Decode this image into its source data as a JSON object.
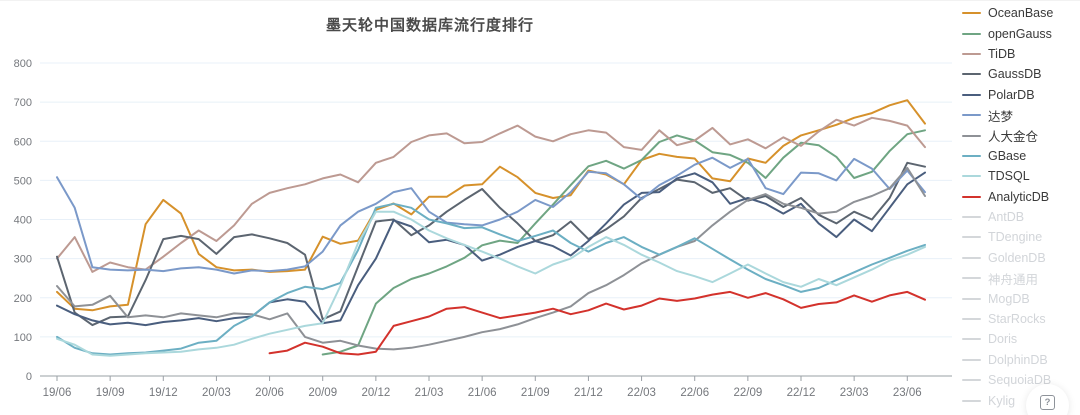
{
  "chart_data": {
    "type": "line",
    "title": "墨天轮中国数据库流行度排行",
    "xlabel": "",
    "ylabel": "",
    "ylim": [
      0,
      800
    ],
    "y_ticks": [
      0,
      100,
      200,
      300,
      400,
      500,
      600,
      700,
      800
    ],
    "grid": "horizontal",
    "legend_position": "right",
    "x_is_monthly": true,
    "months_total": 50,
    "x_tick_month_indices": [
      0,
      3,
      6,
      9,
      12,
      15,
      18,
      21,
      24,
      27,
      30,
      33,
      36,
      39,
      42,
      45,
      48
    ],
    "x_tick_labels": [
      "19/06",
      "19/09",
      "19/12",
      "20/03",
      "20/06",
      "20/09",
      "20/12",
      "21/03",
      "21/06",
      "21/09",
      "21/12",
      "22/03",
      "22/06",
      "22/09",
      "22/12",
      "23/03",
      "23/06"
    ],
    "series": [
      {
        "name": "OceanBase",
        "color": "#d6912b",
        "active": true,
        "values": [
          215,
          172,
          168,
          178,
          182,
          388,
          450,
          415,
          312,
          278,
          270,
          272,
          266,
          268,
          272,
          356,
          338,
          346,
          425,
          441,
          413,
          458,
          458,
          487,
          490,
          535,
          508,
          468,
          455,
          462,
          525,
          515,
          490,
          552,
          568,
          560,
          556,
          505,
          498,
          556,
          545,
          588,
          615,
          628,
          642,
          660,
          672,
          692,
          705,
          645
        ]
      },
      {
        "name": "openGauss",
        "color": "#6fa583",
        "active": true,
        "values": [
          null,
          null,
          null,
          null,
          null,
          null,
          null,
          null,
          null,
          null,
          null,
          null,
          null,
          null,
          null,
          55,
          62,
          78,
          185,
          225,
          248,
          262,
          280,
          302,
          334,
          346,
          340,
          390,
          438,
          488,
          536,
          550,
          530,
          552,
          598,
          615,
          602,
          572,
          565,
          545,
          506,
          558,
          596,
          590,
          560,
          506,
          522,
          575,
          618,
          628
        ]
      },
      {
        "name": "TiDB",
        "color": "#bd9a92",
        "active": true,
        "values": [
          300,
          355,
          266,
          290,
          278,
          272,
          305,
          340,
          372,
          345,
          385,
          440,
          468,
          480,
          490,
          505,
          515,
          495,
          545,
          560,
          598,
          615,
          620,
          595,
          598,
          620,
          640,
          612,
          600,
          618,
          628,
          622,
          585,
          578,
          628,
          590,
          602,
          634,
          592,
          605,
          582,
          610,
          588,
          625,
          655,
          640,
          660,
          652,
          640,
          585
        ]
      },
      {
        "name": "GaussDB",
        "color": "#5c6570",
        "active": true,
        "values": [
          305,
          162,
          130,
          150,
          152,
          245,
          350,
          358,
          350,
          312,
          355,
          362,
          352,
          340,
          310,
          145,
          165,
          280,
          395,
          400,
          360,
          385,
          420,
          450,
          478,
          430,
          390,
          345,
          360,
          395,
          350,
          375,
          408,
          455,
          478,
          502,
          495,
          468,
          480,
          448,
          460,
          432,
          455,
          412,
          390,
          420,
          400,
          455,
          545,
          535
        ]
      },
      {
        "name": "PolarDB",
        "color": "#4a5e7e",
        "active": true,
        "values": [
          180,
          158,
          142,
          132,
          136,
          130,
          138,
          142,
          148,
          140,
          148,
          152,
          188,
          196,
          190,
          135,
          142,
          232,
          300,
          398,
          382,
          342,
          348,
          335,
          295,
          310,
          330,
          345,
          332,
          308,
          345,
          390,
          438,
          468,
          470,
          505,
          518,
          495,
          440,
          455,
          440,
          415,
          440,
          390,
          355,
          400,
          370,
          430,
          490,
          520
        ]
      },
      {
        "name": "达梦",
        "color": "#7b99c9",
        "active": true,
        "values": [
          508,
          430,
          278,
          272,
          270,
          272,
          268,
          275,
          278,
          272,
          262,
          270,
          268,
          272,
          280,
          318,
          385,
          420,
          440,
          470,
          480,
          420,
          392,
          388,
          385,
          400,
          420,
          450,
          432,
          470,
          522,
          518,
          490,
          452,
          488,
          512,
          540,
          558,
          532,
          555,
          480,
          465,
          520,
          518,
          500,
          555,
          530,
          478,
          525,
          470
        ]
      },
      {
        "name": "人大金仓",
        "color": "#8e9196",
        "active": true,
        "values": [
          230,
          178,
          182,
          205,
          150,
          155,
          150,
          160,
          155,
          150,
          160,
          158,
          145,
          160,
          100,
          85,
          90,
          78,
          70,
          68,
          72,
          80,
          90,
          100,
          112,
          120,
          132,
          148,
          162,
          178,
          212,
          232,
          258,
          288,
          310,
          330,
          345,
          385,
          420,
          450,
          465,
          440,
          430,
          415,
          420,
          445,
          460,
          480,
          532,
          460
        ]
      },
      {
        "name": "GBase",
        "color": "#6cafc3",
        "active": true,
        "values": [
          100,
          72,
          58,
          55,
          58,
          60,
          65,
          70,
          85,
          90,
          128,
          152,
          188,
          212,
          228,
          222,
          238,
          322,
          430,
          440,
          430,
          400,
          390,
          378,
          380,
          362,
          345,
          358,
          372,
          340,
          318,
          340,
          355,
          330,
          310,
          330,
          352,
          325,
          298,
          272,
          248,
          232,
          215,
          225,
          245,
          265,
          285,
          302,
          320,
          335
        ]
      },
      {
        "name": "TDSQL",
        "color": "#abd8dc",
        "active": true,
        "values": [
          95,
          80,
          55,
          52,
          55,
          58,
          60,
          62,
          68,
          72,
          80,
          95,
          108,
          118,
          128,
          135,
          230,
          340,
          420,
          420,
          400,
          372,
          352,
          335,
          318,
          300,
          280,
          262,
          285,
          300,
          330,
          355,
          335,
          310,
          290,
          268,
          255,
          240,
          262,
          285,
          262,
          240,
          228,
          248,
          232,
          252,
          272,
          295,
          310,
          330
        ]
      },
      {
        "name": "AnalyticDB",
        "color": "#d3322c",
        "active": true,
        "values": [
          null,
          null,
          null,
          null,
          null,
          null,
          null,
          null,
          null,
          null,
          null,
          null,
          58,
          65,
          85,
          75,
          58,
          55,
          62,
          128,
          140,
          152,
          172,
          176,
          162,
          148,
          155,
          162,
          172,
          158,
          168,
          185,
          170,
          180,
          198,
          192,
          198,
          208,
          215,
          200,
          212,
          196,
          174,
          184,
          188,
          206,
          190,
          206,
          215,
          195
        ]
      },
      {
        "name": "AntDB",
        "color": "#d4d7da",
        "active": false,
        "values": null
      },
      {
        "name": "TDengine",
        "color": "#d4d7da",
        "active": false,
        "values": null
      },
      {
        "name": "GoldenDB",
        "color": "#d4d7da",
        "active": false,
        "values": null
      },
      {
        "name": "神舟通用",
        "color": "#d4d7da",
        "active": false,
        "values": null
      },
      {
        "name": "MogDB",
        "color": "#d4d7da",
        "active": false,
        "values": null
      },
      {
        "name": "StarRocks",
        "color": "#d4d7da",
        "active": false,
        "values": null
      },
      {
        "name": "Doris",
        "color": "#d4d7da",
        "active": false,
        "values": null
      },
      {
        "name": "DolphinDB",
        "color": "#d4d7da",
        "active": false,
        "values": null
      },
      {
        "name": "SequoiaDB",
        "color": "#d4d7da",
        "active": false,
        "values": null
      },
      {
        "name": "Kylig",
        "color": "#d4d7da",
        "active": false,
        "values": null
      }
    ],
    "style": {
      "grid_color": "#e8f0f8",
      "axis_color": "#9aa0a6",
      "tick_label_color": "#75787d",
      "line_width": 2
    }
  },
  "help_button": {
    "glyph": "?"
  }
}
